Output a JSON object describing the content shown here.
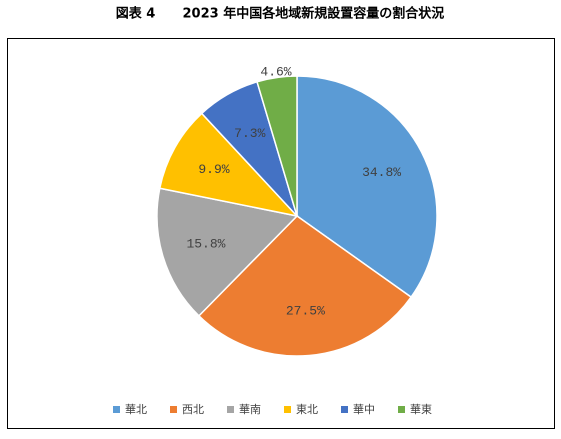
{
  "chart_data": {
    "type": "pie",
    "title": "図表 4      2023 年中国各地域新規設置容量の割合状況",
    "categories": [
      "華北",
      "西北",
      "華南",
      "東北",
      "華中",
      "華東"
    ],
    "values": [
      34.8,
      27.5,
      15.8,
      9.9,
      7.3,
      4.6
    ],
    "value_labels": [
      "34.8%",
      "27.5%",
      "15.8%",
      "9.9%",
      "7.3%",
      "4.6%"
    ],
    "colors": [
      "#5b9bd5",
      "#ed7d31",
      "#a5a5a5",
      "#ffc000",
      "#4472c4",
      "#70ad47"
    ],
    "legend": "bottom"
  }
}
